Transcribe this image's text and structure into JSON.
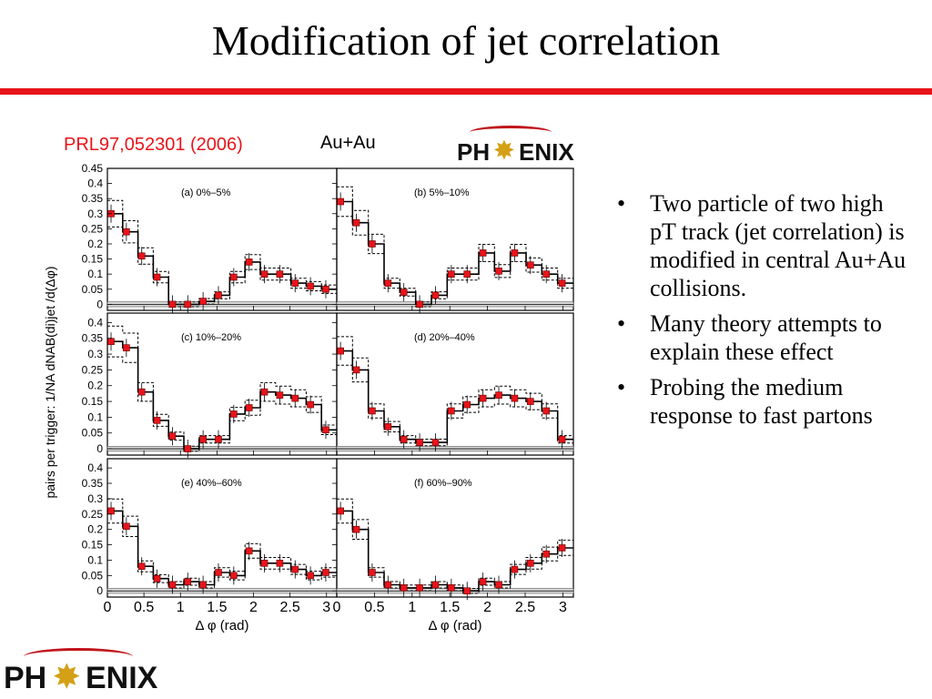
{
  "slide": {
    "title": "Modification of jet correlation",
    "citation": "PRL97,052301 (2006)",
    "system": "Au+Au",
    "logo_text_left": "PH",
    "logo_text_right": "ENIX",
    "accent_color": "#e8141a"
  },
  "bullets": [
    "Two particle of two high pT track (jet correlation) is modified in central Au+Au collisions.",
    "Many theory attempts to explain these effect",
    "Probing the medium response to fast partons"
  ],
  "chart_data": {
    "type": "scatter",
    "xlabel": "Δ φ (rad)",
    "ylabel": "pairs per trigger: 1/NA dNAB(di)jet /d(Δφ)",
    "x_ticks": [
      "0",
      "0.5",
      "1",
      "1.5",
      "2",
      "2.5",
      "3"
    ],
    "xlim": [
      0,
      3.14
    ],
    "panels": [
      {
        "label": "(a) 0%–5%",
        "ylim": [
          -0.02,
          0.45
        ],
        "y_ticks": [
          "0.45",
          "0.4",
          "0.35",
          "0.3",
          "0.25",
          "0.2",
          "0.15",
          "0.1",
          "0.05",
          "0"
        ],
        "x": [
          0.05,
          0.26,
          0.47,
          0.68,
          0.89,
          1.1,
          1.31,
          1.52,
          1.73,
          1.94,
          2.15,
          2.36,
          2.57,
          2.78,
          2.99
        ],
        "values": [
          0.3,
          0.24,
          0.16,
          0.09,
          0.0,
          0.0,
          0.01,
          0.03,
          0.09,
          0.14,
          0.1,
          0.1,
          0.07,
          0.06,
          0.05
        ]
      },
      {
        "label": "(b) 5%–10%",
        "ylim": [
          -0.02,
          0.45
        ],
        "y_ticks": [],
        "x": [
          0.05,
          0.26,
          0.47,
          0.68,
          0.89,
          1.1,
          1.31,
          1.52,
          1.73,
          1.94,
          2.15,
          2.36,
          2.57,
          2.78,
          2.99
        ],
        "values": [
          0.34,
          0.27,
          0.2,
          0.07,
          0.04,
          0.0,
          0.03,
          0.1,
          0.1,
          0.17,
          0.11,
          0.17,
          0.13,
          0.1,
          0.07
        ]
      },
      {
        "label": "(c) 10%–20%",
        "ylim": [
          -0.02,
          0.43
        ],
        "y_ticks": [
          "0.4",
          "0.35",
          "0.3",
          "0.25",
          "0.2",
          "0.15",
          "0.1",
          "0.05",
          "0"
        ],
        "x": [
          0.05,
          0.26,
          0.47,
          0.68,
          0.89,
          1.1,
          1.31,
          1.52,
          1.73,
          1.94,
          2.15,
          2.36,
          2.57,
          2.78,
          2.99
        ],
        "values": [
          0.34,
          0.32,
          0.18,
          0.09,
          0.04,
          0.0,
          0.03,
          0.03,
          0.11,
          0.13,
          0.18,
          0.17,
          0.16,
          0.14,
          0.06
        ]
      },
      {
        "label": "(d) 20%–40%",
        "ylim": [
          -0.02,
          0.43
        ],
        "y_ticks": [],
        "x": [
          0.05,
          0.26,
          0.47,
          0.68,
          0.89,
          1.1,
          1.31,
          1.52,
          1.73,
          1.94,
          2.15,
          2.36,
          2.57,
          2.78,
          2.99
        ],
        "values": [
          0.31,
          0.25,
          0.12,
          0.07,
          0.03,
          0.02,
          0.02,
          0.12,
          0.14,
          0.16,
          0.17,
          0.16,
          0.15,
          0.12,
          0.03
        ]
      },
      {
        "label": "(e) 40%–60%",
        "ylim": [
          -0.02,
          0.43
        ],
        "y_ticks": [
          "0.4",
          "0.35",
          "0.3",
          "0.25",
          "0.2",
          "0.15",
          "0.1",
          "0.05",
          "0"
        ],
        "x": [
          0.05,
          0.26,
          0.47,
          0.68,
          0.89,
          1.1,
          1.31,
          1.52,
          1.73,
          1.94,
          2.15,
          2.36,
          2.57,
          2.78,
          2.99
        ],
        "values": [
          0.26,
          0.21,
          0.08,
          0.04,
          0.02,
          0.03,
          0.02,
          0.06,
          0.05,
          0.13,
          0.09,
          0.09,
          0.07,
          0.05,
          0.06
        ]
      },
      {
        "label": "(f) 60%–90%",
        "ylim": [
          -0.02,
          0.43
        ],
        "y_ticks": [],
        "x": [
          0.05,
          0.26,
          0.47,
          0.68,
          0.89,
          1.1,
          1.31,
          1.52,
          1.73,
          1.94,
          2.15,
          2.36,
          2.57,
          2.78,
          2.99
        ],
        "values": [
          0.26,
          0.2,
          0.06,
          0.02,
          0.01,
          0.01,
          0.02,
          0.01,
          0.0,
          0.03,
          0.02,
          0.07,
          0.09,
          0.12,
          0.14
        ]
      }
    ]
  }
}
